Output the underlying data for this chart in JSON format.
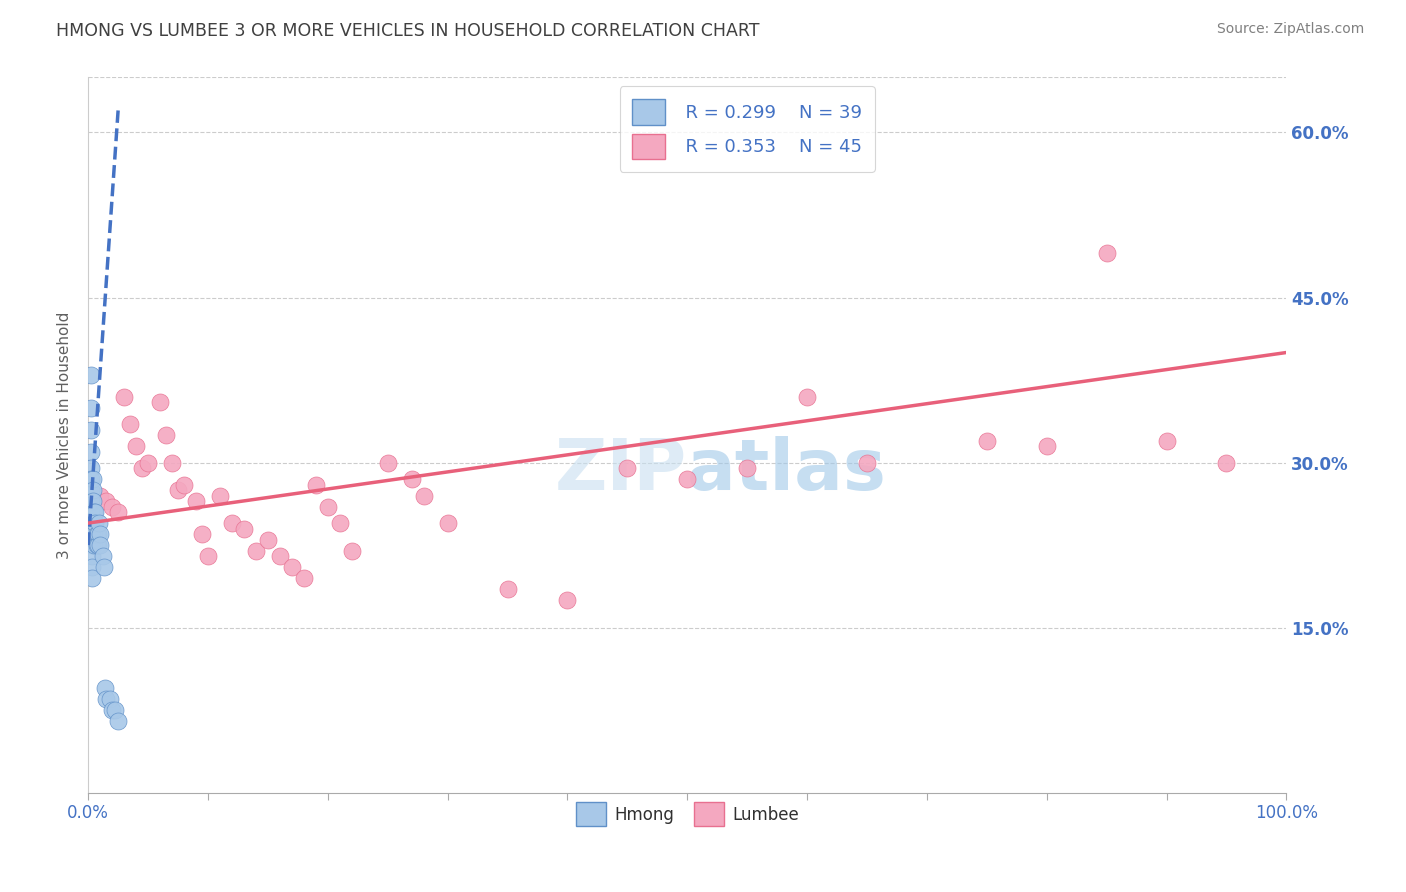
{
  "title": "HMONG VS LUMBEE 3 OR MORE VEHICLES IN HOUSEHOLD CORRELATION CHART",
  "source_text": "Source: ZipAtlas.com",
  "ylabel": "3 or more Vehicles in Household",
  "xlim": [
    0.0,
    1.0
  ],
  "ylim": [
    0.0,
    0.65
  ],
  "xtick_positions": [
    0.0,
    0.1,
    0.2,
    0.3,
    0.4,
    0.5,
    0.6,
    0.7,
    0.8,
    0.9,
    1.0
  ],
  "xtick_labels_show": {
    "0.0": "0.0%",
    "1.0": "100.0%"
  },
  "ytick_values": [
    0.15,
    0.3,
    0.45,
    0.6
  ],
  "ytick_labels": [
    "15.0%",
    "30.0%",
    "45.0%",
    "60.0%"
  ],
  "legend_R_hmong": "R = 0.299",
  "legend_N_hmong": "N = 39",
  "legend_R_lumbee": "R = 0.353",
  "legend_N_lumbee": "N = 45",
  "hmong_color": "#a8c8e8",
  "lumbee_color": "#f4a8c0",
  "hmong_edge_color": "#6090c8",
  "lumbee_edge_color": "#e87090",
  "hmong_line_color": "#4472c4",
  "lumbee_line_color": "#e8607a",
  "title_color": "#404040",
  "source_color": "#808080",
  "axis_label_color": "#606060",
  "tick_color_right": "#4472c4",
  "tick_color_bottom": "#4472c4",
  "watermark": "ZIPatlas",
  "hmong_scatter_x": [
    0.002,
    0.002,
    0.002,
    0.002,
    0.002,
    0.002,
    0.002,
    0.002,
    0.002,
    0.002,
    0.003,
    0.003,
    0.003,
    0.003,
    0.003,
    0.004,
    0.004,
    0.004,
    0.005,
    0.005,
    0.005,
    0.005,
    0.006,
    0.006,
    0.007,
    0.007,
    0.008,
    0.008,
    0.009,
    0.01,
    0.01,
    0.012,
    0.013,
    0.014,
    0.015,
    0.018,
    0.02,
    0.022,
    0.025
  ],
  "hmong_scatter_y": [
    0.38,
    0.35,
    0.33,
    0.31,
    0.295,
    0.285,
    0.275,
    0.265,
    0.255,
    0.245,
    0.235,
    0.225,
    0.215,
    0.205,
    0.195,
    0.285,
    0.275,
    0.265,
    0.255,
    0.245,
    0.235,
    0.225,
    0.255,
    0.245,
    0.235,
    0.225,
    0.235,
    0.225,
    0.245,
    0.235,
    0.225,
    0.215,
    0.205,
    0.095,
    0.085,
    0.085,
    0.075,
    0.075,
    0.065
  ],
  "lumbee_scatter_x": [
    0.01,
    0.015,
    0.02,
    0.025,
    0.03,
    0.035,
    0.04,
    0.045,
    0.05,
    0.06,
    0.065,
    0.07,
    0.075,
    0.08,
    0.09,
    0.095,
    0.1,
    0.11,
    0.12,
    0.13,
    0.14,
    0.15,
    0.16,
    0.17,
    0.18,
    0.19,
    0.2,
    0.21,
    0.22,
    0.25,
    0.27,
    0.28,
    0.3,
    0.35,
    0.4,
    0.45,
    0.5,
    0.55,
    0.6,
    0.65,
    0.75,
    0.8,
    0.85,
    0.9,
    0.95
  ],
  "lumbee_scatter_y": [
    0.27,
    0.265,
    0.26,
    0.255,
    0.36,
    0.335,
    0.315,
    0.295,
    0.3,
    0.355,
    0.325,
    0.3,
    0.275,
    0.28,
    0.265,
    0.235,
    0.215,
    0.27,
    0.245,
    0.24,
    0.22,
    0.23,
    0.215,
    0.205,
    0.195,
    0.28,
    0.26,
    0.245,
    0.22,
    0.3,
    0.285,
    0.27,
    0.245,
    0.185,
    0.175,
    0.295,
    0.285,
    0.295,
    0.36,
    0.3,
    0.32,
    0.315,
    0.49,
    0.32,
    0.3
  ],
  "hmong_trend_x0": 0.0,
  "hmong_trend_y0": 0.225,
  "hmong_trend_x1": 0.025,
  "hmong_trend_y1": 0.62,
  "lumbee_trend_x0": 0.0,
  "lumbee_trend_y0": 0.245,
  "lumbee_trend_x1": 1.0,
  "lumbee_trend_y1": 0.4,
  "figsize": [
    14.06,
    8.92
  ],
  "dpi": 100
}
